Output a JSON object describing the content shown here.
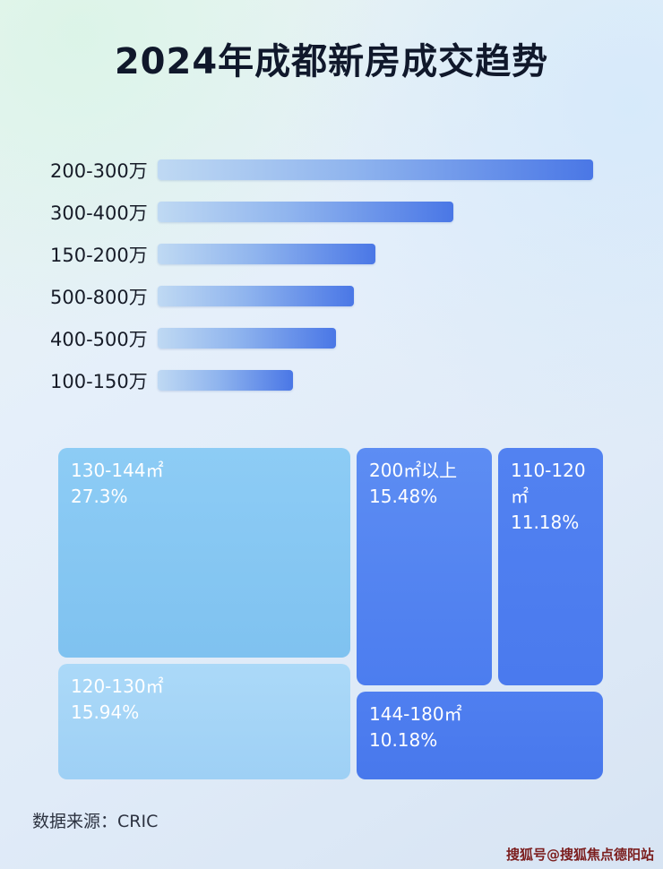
{
  "page": {
    "title": "2024年成都新房成交趋势",
    "source_label": "数据来源：CRIC",
    "watermark": "搜狐号@搜狐焦点德阳站"
  },
  "colors": {
    "bar_gradient_start": "#bfd9f3",
    "bar_gradient_end": "#4a77e6",
    "treemap_light_blue": "#85c8f3",
    "treemap_lighter_blue": "#a8d8f7",
    "treemap_medium_blue": "#4e7ff0",
    "title_text": "#10182b",
    "watermark_text": "#7b1d1d"
  },
  "chart_data": [
    {
      "type": "bar",
      "orientation": "horizontal",
      "title": "2024年成都新房成交趋势",
      "categories": [
        "200-300万",
        "300-400万",
        "150-200万",
        "500-800万",
        "400-500万",
        "100-150万"
      ],
      "values": [
        100,
        68,
        50,
        45,
        41,
        31
      ],
      "values_unit": "relative bar length, % of longest bar (no numeric axis or data labels shown)",
      "xlabel": "",
      "ylabel": "",
      "grid": false,
      "legend": false
    },
    {
      "type": "treemap",
      "title": "",
      "items": [
        {
          "label": "130-144㎡",
          "percent": "27.3%",
          "value": 27.3
        },
        {
          "label": "120-130㎡",
          "percent": "15.94%",
          "value": 15.94
        },
        {
          "label": "200㎡以上",
          "percent": "15.48%",
          "value": 15.48
        },
        {
          "label": "110-120㎡",
          "percent": "11.18%",
          "value": 11.18
        },
        {
          "label": "144-180㎡",
          "percent": "10.18%",
          "value": 10.18
        }
      ]
    }
  ]
}
